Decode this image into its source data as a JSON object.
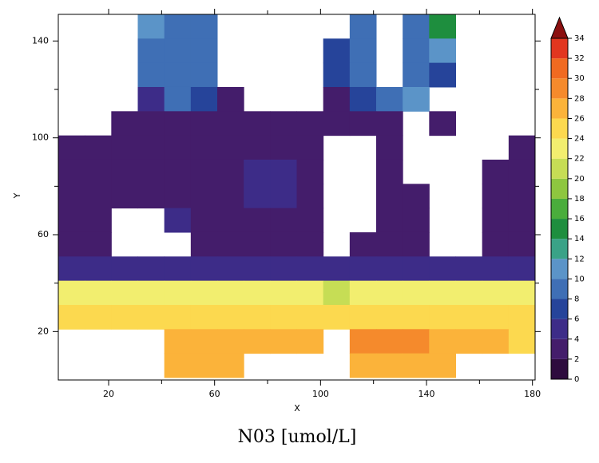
{
  "chart_data": {
    "type": "heatmap",
    "title": "N03 [umol/L]",
    "x_label": "X",
    "y_label": "Y",
    "xlim": [
      1,
      181
    ],
    "ylim": [
      0,
      151
    ],
    "xticks": [
      20,
      60,
      100,
      140,
      180
    ],
    "xminorticks": [
      40,
      80,
      120,
      160
    ],
    "yticks": [
      20,
      60,
      100,
      140
    ],
    "yminorticks": [
      40,
      80,
      120
    ],
    "x": [
      6,
      16,
      26,
      36,
      46,
      56,
      66,
      76,
      86,
      96,
      106,
      116,
      126,
      136,
      146,
      156,
      166,
      176
    ],
    "y": [
      146,
      136,
      126,
      116,
      106,
      96,
      86,
      76,
      66,
      56,
      46,
      36,
      26,
      16,
      6
    ],
    "values": [
      [
        null,
        null,
        null,
        10,
        8,
        9,
        null,
        null,
        null,
        null,
        null,
        9,
        null,
        9,
        14,
        null,
        null,
        null
      ],
      [
        null,
        null,
        null,
        8,
        8,
        9,
        null,
        null,
        null,
        null,
        6,
        8,
        null,
        9,
        11,
        null,
        null,
        null
      ],
      [
        null,
        null,
        null,
        8,
        9,
        8,
        null,
        null,
        null,
        null,
        6,
        8,
        null,
        9,
        6,
        null,
        null,
        null
      ],
      [
        null,
        null,
        null,
        4,
        8,
        6,
        2,
        null,
        null,
        null,
        2,
        6,
        8,
        10,
        null,
        null,
        null,
        null
      ],
      [
        null,
        null,
        2,
        2,
        2,
        2,
        2,
        2,
        2,
        2,
        2,
        2,
        2,
        null,
        2,
        null,
        null,
        null
      ],
      [
        2,
        2,
        2,
        2,
        2,
        2,
        2,
        2,
        2,
        2,
        null,
        null,
        2,
        null,
        null,
        null,
        null,
        2
      ],
      [
        2,
        2,
        2,
        2,
        2,
        2,
        2,
        4,
        4,
        2,
        null,
        null,
        2,
        null,
        null,
        null,
        2,
        2
      ],
      [
        2,
        2,
        2,
        2,
        2,
        2,
        2,
        4,
        4,
        2,
        null,
        null,
        2,
        2,
        null,
        null,
        2,
        2
      ],
      [
        2,
        2,
        null,
        null,
        4,
        2,
        2,
        2,
        2,
        2,
        null,
        null,
        2,
        2,
        null,
        null,
        2,
        2
      ],
      [
        2,
        2,
        null,
        null,
        null,
        2,
        2,
        2,
        2,
        2,
        null,
        2,
        2,
        2,
        null,
        null,
        2,
        2
      ],
      [
        4,
        4,
        4,
        4,
        4,
        4,
        4,
        4,
        4,
        4,
        4,
        4,
        4,
        4,
        4,
        4,
        4,
        4
      ],
      [
        22,
        22,
        22,
        22,
        22,
        22,
        22,
        22,
        22,
        22,
        20,
        22,
        22,
        22,
        22,
        22,
        22,
        22
      ],
      [
        24,
        24,
        24,
        24,
        24,
        24,
        24,
        24,
        24,
        24,
        24,
        24,
        24,
        24,
        24,
        24,
        24,
        24
      ],
      [
        null,
        null,
        null,
        null,
        27,
        27,
        27,
        26,
        26,
        26,
        null,
        28,
        28,
        28,
        27,
        26,
        26,
        25
      ],
      [
        null,
        null,
        null,
        null,
        27,
        27,
        27,
        null,
        null,
        null,
        null,
        27,
        27,
        27,
        27,
        null,
        null,
        null
      ]
    ],
    "colorbar": {
      "levels": [
        0,
        2,
        4,
        6,
        8,
        10,
        12,
        14,
        16,
        18,
        20,
        22,
        24,
        26,
        28,
        30,
        32,
        34
      ],
      "colors": [
        "#2e0c3e",
        "#441d6b",
        "#3d2c88",
        "#26449a",
        "#3f6fb5",
        "#5b94c8",
        "#3aa287",
        "#1e8e3e",
        "#4aad3c",
        "#8ec63f",
        "#c6dd55",
        "#f2ee6f",
        "#fcd94f",
        "#fbb33a",
        "#f58a2c",
        "#f06a21",
        "#e2361f"
      ],
      "extend_color": "#8b0f0f"
    }
  }
}
